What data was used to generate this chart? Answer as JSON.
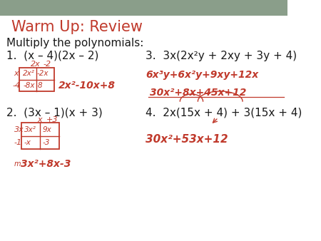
{
  "bg_top": "#8a9e8a",
  "bg_white": "#ffffff",
  "title": "Warm Up: Review",
  "title_color": "#c0392b",
  "title_fontsize": 15,
  "problem_color": "#1a1a1a",
  "problem_fontsize": 11,
  "hand_color": "#c0392b",
  "hand_fontsize": 10,
  "top_bar_height": 22,
  "subtitle": "Multiply the polynomials:",
  "p1": "1.  (x – 4)(2x – 2)",
  "p2": "2.  (3x – 1)(x + 3)",
  "p3": "3.  3x(2x²y + 2xy + 3y + 4)",
  "p4": "4.  2x(15x + 4) + 3(15x + 4)",
  "ans1": "2x²-10x+8",
  "ans2": "3x²+8x-3",
  "ans3a": "6x³y+6x²y+9xy+12x",
  "ans3b": "30x²+8x+45x+12",
  "ans4": "30x²+53x+12"
}
